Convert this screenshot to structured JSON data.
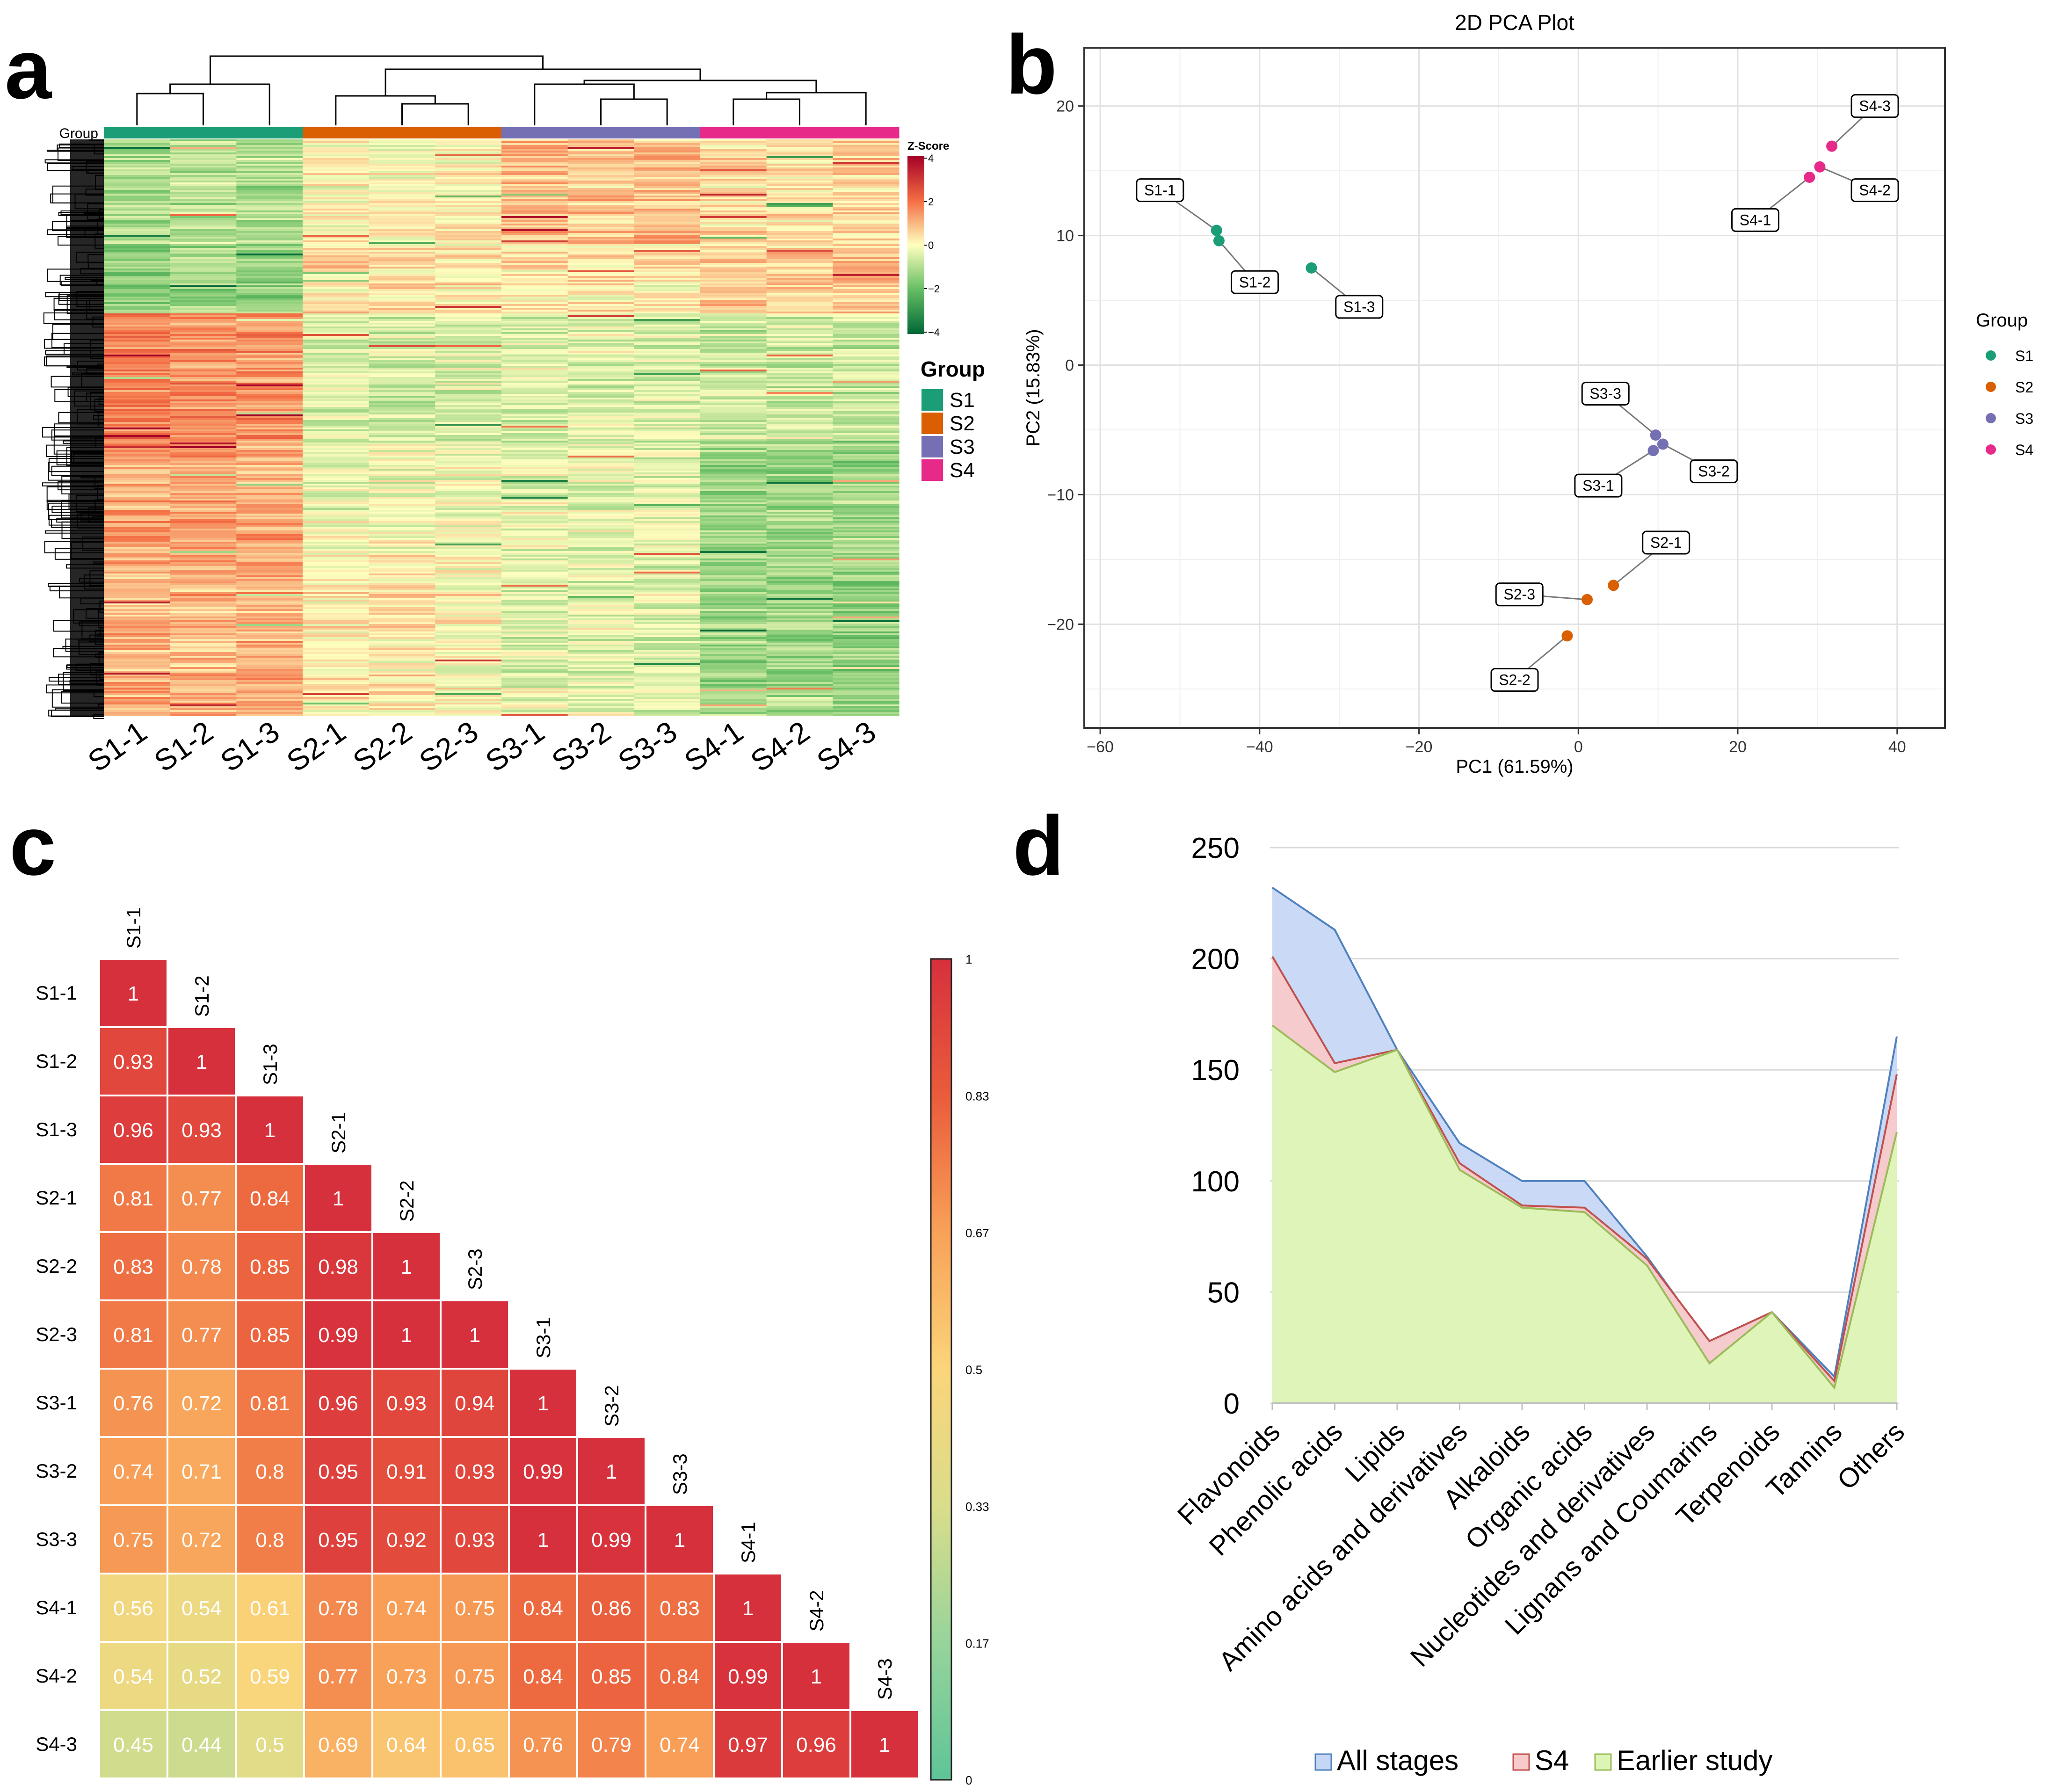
{
  "chart_data": [
    {
      "panel": "a",
      "type": "heatmap",
      "title": "",
      "group_label": "Group",
      "colorbar_title": "Z-Score",
      "colorbar_ticks": [
        "4",
        "2",
        "0",
        "−2",
        "−4"
      ],
      "colorbar_range": [
        -4,
        4
      ],
      "columns": [
        "S1-1",
        "S1-2",
        "S1-3",
        "S2-1",
        "S2-2",
        "S2-3",
        "S3-1",
        "S3-2",
        "S3-3",
        "S4-1",
        "S4-2",
        "S4-3"
      ],
      "column_groups": [
        "S1",
        "S1",
        "S1",
        "S2",
        "S2",
        "S2",
        "S3",
        "S3",
        "S3",
        "S4",
        "S4",
        "S4"
      ],
      "legend_title": "Group",
      "legend": [
        {
          "name": "S1",
          "color": "#1b9e77"
        },
        {
          "name": "S2",
          "color": "#d95f02"
        },
        {
          "name": "S3",
          "color": "#7570b3"
        },
        {
          "name": "S4",
          "color": "#e7298a"
        }
      ],
      "block_profile_zscores": [
        [
          -1.5,
          -1.3,
          -1.4,
          0.2,
          0.1,
          0.3,
          1.2,
          1.1,
          1.3,
          0.6,
          0.5,
          0.7
        ],
        [
          -2.0,
          -1.8,
          -1.9,
          0.6,
          0.5,
          0.4,
          0.4,
          0.5,
          0.3,
          0.9,
          0.8,
          1.0
        ],
        [
          2.3,
          2.1,
          2.0,
          -0.6,
          -0.7,
          -0.6,
          -0.5,
          -0.5,
          -0.6,
          -0.9,
          -0.8,
          -1.0
        ],
        [
          1.6,
          1.7,
          1.5,
          -0.3,
          -0.2,
          -0.3,
          -0.5,
          -0.4,
          -0.5,
          -1.6,
          -1.7,
          -1.8
        ],
        [
          1.4,
          1.3,
          1.5,
          0.3,
          0.4,
          0.2,
          -0.5,
          -0.4,
          -0.6,
          -1.7,
          -1.6,
          -1.8
        ]
      ]
    },
    {
      "panel": "b",
      "type": "scatter",
      "title": "2D PCA Plot",
      "xlabel": "PC1 (61.59%)",
      "ylabel": "PC2 (15.83%)",
      "xlim": [
        -62,
        46
      ],
      "ylim": [
        -28,
        24.5
      ],
      "xticks": [
        -60,
        -40,
        -20,
        0,
        20,
        40
      ],
      "yticks": [
        -20,
        -10,
        0,
        10,
        20
      ],
      "grid": true,
      "legend_title": "Group",
      "legend_position": "right",
      "series": [
        {
          "name": "S1",
          "color": "#1b9e77",
          "points": [
            {
              "label": "S1-1",
              "x": -45.4,
              "y": 10.4,
              "lx": -52.5,
              "ly": 13.5
            },
            {
              "label": "S1-2",
              "x": -45.1,
              "y": 9.6,
              "lx": -40.6,
              "ly": 6.4
            },
            {
              "label": "S1-3",
              "x": -33.5,
              "y": 7.5,
              "lx": -27.5,
              "ly": 4.5
            }
          ]
        },
        {
          "name": "S2",
          "color": "#d95f02",
          "points": [
            {
              "label": "S2-1",
              "x": 4.4,
              "y": -17.0,
              "lx": 11.0,
              "ly": -13.7
            },
            {
              "label": "S2-2",
              "x": -1.4,
              "y": -20.9,
              "lx": -8.0,
              "ly": -24.3
            },
            {
              "label": "S2-3",
              "x": 1.1,
              "y": -18.1,
              "lx": -7.4,
              "ly": -17.7
            }
          ]
        },
        {
          "name": "S3",
          "color": "#7570b3",
          "points": [
            {
              "label": "S3-1",
              "x": 9.4,
              "y": -6.6,
              "lx": 2.5,
              "ly": -9.3
            },
            {
              "label": "S3-2",
              "x": 10.6,
              "y": -6.1,
              "lx": 17.0,
              "ly": -8.2
            },
            {
              "label": "S3-3",
              "x": 9.7,
              "y": -5.4,
              "lx": 3.4,
              "ly": -2.2
            }
          ]
        },
        {
          "name": "S4",
          "color": "#e7298a",
          "points": [
            {
              "label": "S4-1",
              "x": 29.0,
              "y": 14.5,
              "lx": 22.2,
              "ly": 11.2
            },
            {
              "label": "S4-2",
              "x": 30.3,
              "y": 15.3,
              "lx": 37.2,
              "ly": 13.5
            },
            {
              "label": "S4-3",
              "x": 31.8,
              "y": 16.9,
              "lx": 37.2,
              "ly": 20.0
            }
          ]
        }
      ]
    },
    {
      "panel": "c",
      "type": "heatmap",
      "title": "",
      "labels": [
        "S1-1",
        "S1-2",
        "S1-3",
        "S2-1",
        "S2-2",
        "S2-3",
        "S3-1",
        "S3-2",
        "S3-3",
        "S4-1",
        "S4-2",
        "S4-3"
      ],
      "matrix_lower": [
        [
          1
        ],
        [
          0.93,
          1
        ],
        [
          0.96,
          0.93,
          1
        ],
        [
          0.81,
          0.77,
          0.84,
          1
        ],
        [
          0.83,
          0.78,
          0.85,
          0.98,
          1
        ],
        [
          0.81,
          0.77,
          0.85,
          0.99,
          1,
          1
        ],
        [
          0.76,
          0.72,
          0.81,
          0.96,
          0.93,
          0.94,
          1
        ],
        [
          0.74,
          0.71,
          0.8,
          0.95,
          0.91,
          0.93,
          0.99,
          1
        ],
        [
          0.75,
          0.72,
          0.8,
          0.95,
          0.92,
          0.93,
          1,
          0.99,
          1
        ],
        [
          0.56,
          0.54,
          0.61,
          0.78,
          0.74,
          0.75,
          0.84,
          0.86,
          0.83,
          1
        ],
        [
          0.54,
          0.52,
          0.59,
          0.77,
          0.73,
          0.75,
          0.84,
          0.85,
          0.84,
          0.99,
          1
        ],
        [
          0.45,
          0.44,
          0.5,
          0.69,
          0.64,
          0.65,
          0.76,
          0.79,
          0.74,
          0.97,
          0.96,
          1
        ]
      ],
      "colorbar_range": [
        0,
        1
      ],
      "colorbar_ticks": [
        "1",
        "0.83",
        "0.67",
        "0.5",
        "0.33",
        "0.17",
        "0"
      ]
    },
    {
      "panel": "d",
      "type": "area",
      "title": "",
      "categories": [
        "Flavonoids",
        "Phenolic acids",
        "Lipids",
        "Amino acids and derivatives",
        "Alkaloids",
        "Organic acids",
        "Nucleotides and derivatives",
        "Lignans and Coumarins",
        "Terpenoids",
        "Tannins",
        "Others"
      ],
      "ylim": [
        0,
        250
      ],
      "yticks": [
        0,
        50,
        100,
        150,
        200,
        250
      ],
      "grid": true,
      "legend_position": "bottom",
      "series": [
        {
          "name": "All stages",
          "color": "#4f81bd",
          "fill": "#c6d7f5",
          "values": [
            232,
            213,
            159,
            117,
            100,
            100,
            66,
            27,
            null,
            12,
            165
          ]
        },
        {
          "name": "S4",
          "color": "#c0504d",
          "fill": "#f8caca",
          "values": [
            201,
            153,
            159,
            108,
            89,
            88,
            65,
            28,
            null,
            10,
            148
          ]
        },
        {
          "name": "Earlier study",
          "color": "#9bbb59",
          "fill": "#dcf5b6",
          "values": [
            170,
            149,
            159,
            105,
            88,
            86,
            62,
            18,
            41,
            7,
            122
          ]
        }
      ]
    }
  ]
}
